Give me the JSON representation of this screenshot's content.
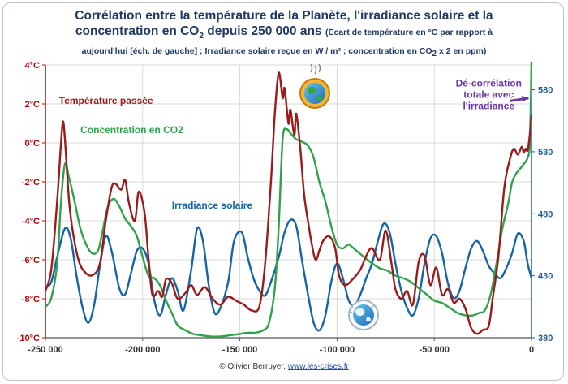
{
  "title": {
    "line1": "Corrélation entre la température de la Planète, l'irradiance solaire et la",
    "line2_main": "concentration en CO",
    "line2_sub": "2",
    "line2_rest": " depuis 250 000 ans",
    "note_a": "(Écart de température en °C par rapport à",
    "note_b": "aujourd'hui [éch. de gauche] ; Irradiance solaire reçue en W / m² ; concentration en CO",
    "note_b_sub": "2",
    "note_b_rest": " x 2 en ppm)"
  },
  "credit": {
    "author": "© Olivier Berruyer, ",
    "site": "www.les-crises.fr"
  },
  "icons": [
    "earth-hot-icon",
    "earth-cold-icon"
  ],
  "colors": {
    "temperature": "#9b1b1b",
    "co2": "#2ea34b",
    "irradiance": "#1464a8",
    "annotation": "#6b35a6",
    "left_axis": "#c00000",
    "right_axis": "#1f5e95",
    "grid": "#d9d9d9"
  },
  "chart_data": {
    "type": "line",
    "xlabel": "",
    "ylabel": "",
    "xlim": [
      -250000,
      0
    ],
    "ylim": [
      -10,
      4
    ],
    "y2lim": [
      380,
      600
    ],
    "x_ticks": [
      -250000,
      -200000,
      -150000,
      -100000,
      -50000,
      0
    ],
    "x_tick_labels": [
      "-250 000",
      "-200 000",
      "-150 000",
      "-100 000",
      "-50 000",
      "0"
    ],
    "y_ticks": [
      -10,
      -8,
      -6,
      -4,
      -2,
      0,
      2,
      4
    ],
    "y_tick_labels": [
      "-10°C",
      "-8°C",
      "-6°C",
      "-4°C",
      "-2°C",
      "0°C",
      "2°C",
      "4°C"
    ],
    "y2_ticks": [
      380,
      430,
      480,
      530,
      580
    ],
    "y2_tick_labels": [
      "380",
      "430",
      "480",
      "530",
      "580"
    ],
    "grid": true,
    "series": [
      {
        "name": "Température passée",
        "axis": "left",
        "label_x": -243000,
        "label_y": 2.0,
        "x": [
          -250000,
          -247000,
          -244000,
          -242000,
          -241000,
          -240000,
          -238000,
          -236000,
          -233000,
          -230000,
          -226000,
          -222000,
          -219000,
          -216000,
          -214000,
          -211000,
          -209000,
          -207000,
          -204000,
          -202000,
          -199000,
          -197000,
          -195000,
          -192000,
          -190000,
          -188000,
          -185000,
          -182000,
          -178000,
          -175000,
          -172000,
          -168000,
          -164000,
          -160000,
          -156000,
          -152000,
          -148000,
          -144000,
          -140000,
          -137000,
          -134000,
          -132000,
          -130000,
          -128000,
          -127000,
          -125000,
          -124000,
          -122000,
          -121000,
          -119000,
          -117000,
          -115000,
          -113000,
          -111000,
          -109000,
          -107000,
          -104000,
          -101000,
          -99000,
          -96000,
          -92000,
          -88000,
          -85000,
          -82000,
          -78000,
          -75000,
          -72000,
          -70000,
          -67000,
          -64000,
          -61000,
          -58000,
          -55000,
          -52000,
          -49000,
          -46000,
          -43000,
          -40000,
          -37000,
          -34000,
          -31000,
          -28000,
          -25000,
          -22000,
          -20000,
          -17000,
          -14000,
          -11000,
          -9000,
          -7000,
          -5000,
          -4000,
          -3000,
          -2000,
          -1000,
          0
        ],
        "y": [
          -7.6,
          -6.5,
          -3.0,
          0.0,
          1.1,
          0.2,
          -2.8,
          -4.5,
          -6.0,
          -6.6,
          -6.8,
          -6.2,
          -4.0,
          -2.3,
          -2.1,
          -2.4,
          -1.9,
          -3.1,
          -4.0,
          -2.5,
          -3.6,
          -5.9,
          -7.8,
          -7.6,
          -7.9,
          -7.0,
          -7.2,
          -8.0,
          -7.7,
          -7.3,
          -7.8,
          -7.4,
          -8.0,
          -8.3,
          -7.9,
          -8.1,
          -8.3,
          -8.6,
          -8.4,
          -6.2,
          -2.0,
          1.5,
          3.6,
          2.3,
          2.8,
          1.0,
          1.7,
          0.4,
          1.5,
          -0.2,
          -2.6,
          -4.0,
          -5.2,
          -6.0,
          -5.5,
          -5.0,
          -4.8,
          -5.4,
          -6.8,
          -7.3,
          -7.0,
          -6.5,
          -5.8,
          -5.4,
          -6.0,
          -4.5,
          -6.2,
          -7.5,
          -8.0,
          -7.6,
          -8.3,
          -6.1,
          -5.8,
          -7.3,
          -6.4,
          -7.8,
          -7.5,
          -8.2,
          -8.0,
          -8.5,
          -9.5,
          -9.8,
          -9.6,
          -9.4,
          -8.0,
          -5.8,
          -2.3,
          -0.8,
          -0.3,
          -0.6,
          -0.2,
          -0.5,
          -0.3,
          -0.4,
          0.3,
          1.4
        ]
      },
      {
        "name": "Concentration en CO2",
        "axis": "right",
        "label_x": -232000,
        "label_y": 545,
        "x": [
          -250000,
          -247000,
          -244000,
          -242000,
          -240000,
          -238000,
          -235000,
          -232000,
          -229000,
          -226000,
          -223000,
          -221000,
          -218000,
          -215000,
          -212000,
          -209000,
          -206000,
          -203000,
          -200000,
          -197000,
          -194000,
          -191000,
          -188000,
          -185000,
          -182000,
          -178000,
          -174000,
          -170000,
          -165000,
          -160000,
          -155000,
          -150000,
          -146000,
          -142000,
          -138000,
          -135000,
          -132000,
          -130000,
          -128000,
          -126000,
          -124000,
          -121000,
          -118000,
          -115000,
          -112000,
          -109000,
          -106000,
          -103000,
          -100000,
          -97000,
          -94000,
          -90000,
          -86000,
          -82000,
          -78000,
          -74000,
          -70000,
          -66000,
          -62000,
          -58000,
          -54000,
          -50000,
          -46000,
          -42000,
          -38000,
          -34000,
          -30000,
          -27000,
          -24000,
          -21000,
          -18000,
          -15000,
          -12000,
          -10000,
          -8000,
          -6000,
          -4000,
          -3000,
          -2000,
          -1000,
          -500,
          0
        ],
        "y": [
          405,
          412,
          440,
          490,
          520,
          510,
          490,
          468,
          455,
          448,
          450,
          463,
          485,
          492,
          486,
          476,
          470,
          462,
          445,
          430,
          428,
          422,
          410,
          400,
          390,
          386,
          383,
          382,
          381,
          381,
          382,
          383,
          384,
          384,
          386,
          392,
          420,
          470,
          540,
          548,
          545,
          540,
          538,
          535,
          525,
          505,
          490,
          470,
          455,
          452,
          455,
          450,
          445,
          440,
          436,
          434,
          430,
          428,
          425,
          420,
          415,
          410,
          408,
          404,
          400,
          398,
          398,
          400,
          402,
          415,
          440,
          468,
          488,
          505,
          512,
          516,
          520,
          522,
          525,
          532,
          560,
          605
        ]
      },
      {
        "name": "Irradiance solaire",
        "axis": "right",
        "label_x": -185000,
        "label_y": 484,
        "x": [
          -250000,
          -247000,
          -244000,
          -240000,
          -237000,
          -234000,
          -231000,
          -228000,
          -225000,
          -222000,
          -219000,
          -216000,
          -212000,
          -209000,
          -206000,
          -203000,
          -200000,
          -197000,
          -194000,
          -191000,
          -188000,
          -185000,
          -182000,
          -179000,
          -175000,
          -172000,
          -169000,
          -166000,
          -163000,
          -160000,
          -156000,
          -153000,
          -149000,
          -146000,
          -143000,
          -140000,
          -137000,
          -134000,
          -130000,
          -127000,
          -124000,
          -121000,
          -118000,
          -115000,
          -112000,
          -109000,
          -106000,
          -103000,
          -100000,
          -97000,
          -94000,
          -91000,
          -88000,
          -85000,
          -82000,
          -79000,
          -76000,
          -73000,
          -70000,
          -67000,
          -64000,
          -61000,
          -58000,
          -55000,
          -52000,
          -49000,
          -46000,
          -43000,
          -40000,
          -37000,
          -34000,
          -31000,
          -28000,
          -25000,
          -22000,
          -19000,
          -16000,
          -13000,
          -10000,
          -7000,
          -4000,
          -2000,
          0
        ],
        "y": [
          420,
          425,
          445,
          468,
          460,
          430,
          405,
          392,
          406,
          438,
          462,
          450,
          420,
          415,
          432,
          450,
          452,
          440,
          410,
          398,
          415,
          428,
          418,
          402,
          435,
          468,
          458,
          422,
          400,
          404,
          425,
          458,
          465,
          445,
          428,
          418,
          414,
          425,
          445,
          465,
          475,
          470,
          442,
          415,
          392,
          386,
          398,
          425,
          440,
          428,
          410,
          406,
          415,
          428,
          440,
          458,
          472,
          465,
          440,
          418,
          404,
          398,
          412,
          440,
          460,
          462,
          448,
          424,
          412,
          418,
          436,
          452,
          458,
          450,
          438,
          432,
          428,
          436,
          448,
          464,
          458,
          440,
          428
        ]
      }
    ],
    "annotations": [
      {
        "text_lines": [
          "Dé-corrélation",
          "totale avec",
          "l'irradiance"
        ],
        "x": -22000,
        "y": 2.9
      }
    ]
  }
}
